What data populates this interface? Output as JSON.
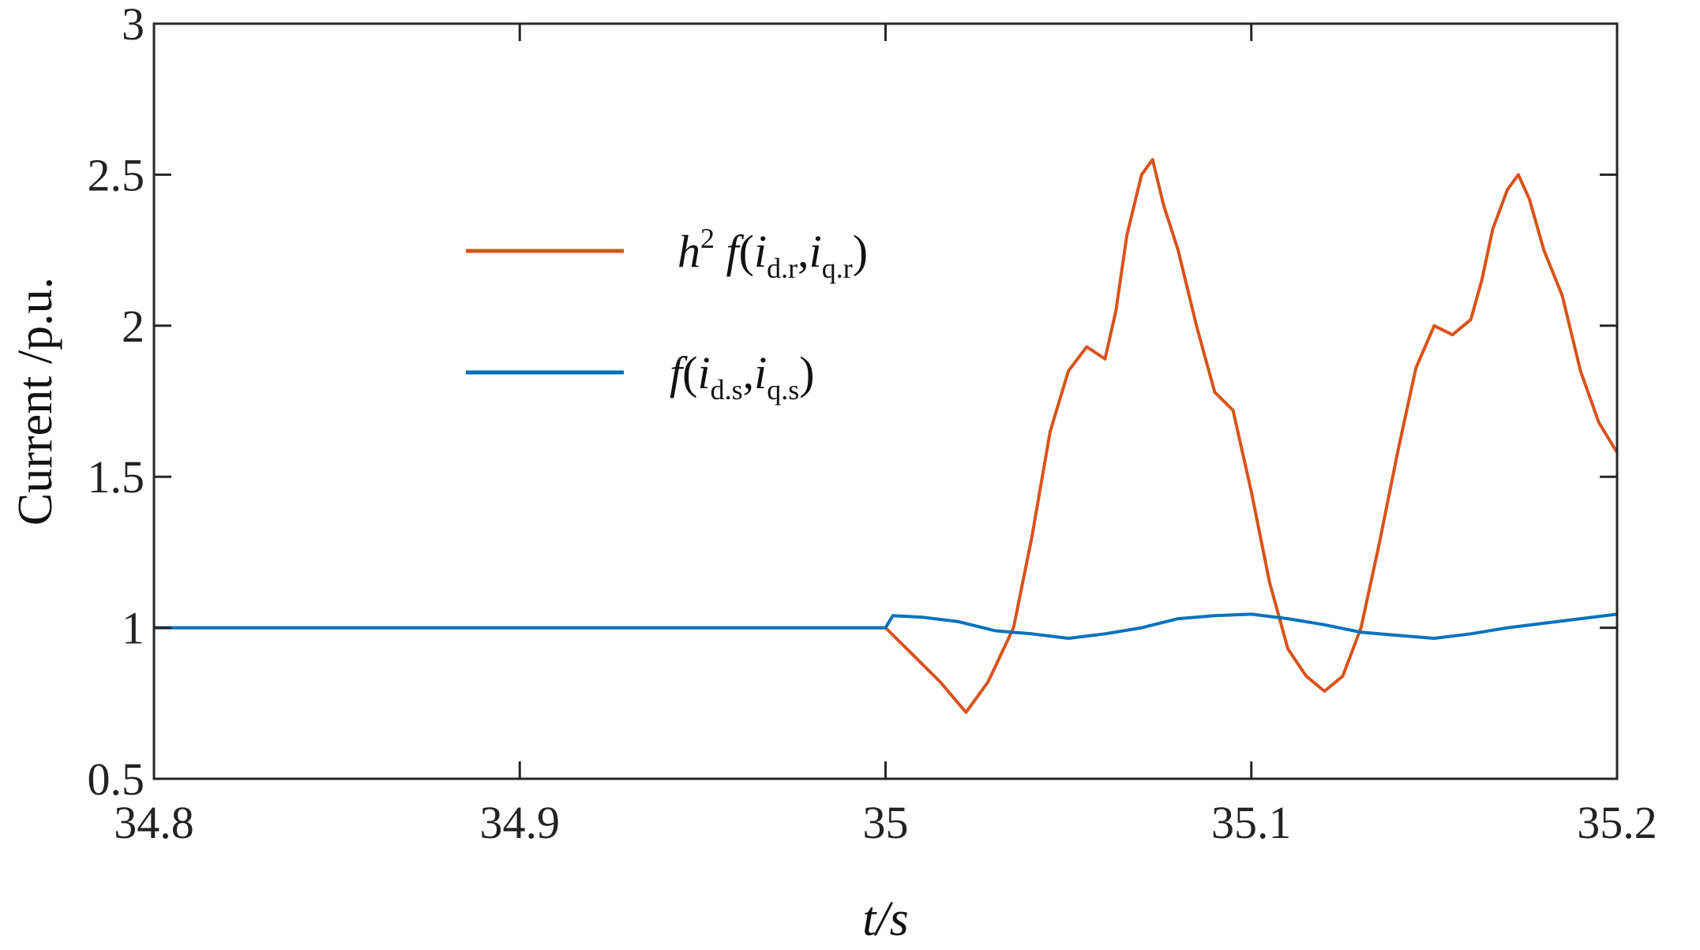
{
  "chart_data": {
    "type": "line",
    "xlabel": "t/s",
    "ylabel": "Current /p.u.",
    "xlim": [
      34.8,
      35.2
    ],
    "ylim": [
      0.5,
      3
    ],
    "xticks": [
      34.8,
      34.9,
      35.0,
      35.1,
      35.2
    ],
    "xtick_labels": [
      "34.8",
      "34.9",
      "35",
      "35.1",
      "35.2"
    ],
    "yticks": [
      0.5,
      1.0,
      1.5,
      2.0,
      2.5,
      3.0
    ],
    "ytick_labels": [
      "0.5",
      "1",
      "1.5",
      "2",
      "2.5",
      "3"
    ],
    "grid": false,
    "legend_position": "upper-left-center",
    "series": [
      {
        "name": "h²f(i_d.r, i_q.r)",
        "legend": {
          "pre": "h",
          "sup": "2",
          "fn": "f",
          "a": "i",
          "a_sub": "d.r",
          "b": "i",
          "b_sub": "q.r"
        },
        "color": "#D95319",
        "x": [
          34.8,
          34.9,
          35.0,
          35.005,
          35.01,
          35.015,
          35.022,
          35.028,
          35.035,
          35.04,
          35.045,
          35.05,
          35.055,
          35.06,
          35.063,
          35.066,
          35.07,
          35.073,
          35.076,
          35.08,
          35.085,
          35.09,
          35.095,
          35.1,
          35.105,
          35.11,
          35.115,
          35.12,
          35.125,
          35.13,
          35.135,
          35.14,
          35.145,
          35.15,
          35.155,
          35.16,
          35.163,
          35.166,
          35.17,
          35.173,
          35.176,
          35.18,
          35.185,
          35.19,
          35.195,
          35.2
        ],
        "y": [
          1.0,
          1.0,
          1.0,
          0.94,
          0.88,
          0.82,
          0.72,
          0.82,
          1.0,
          1.3,
          1.65,
          1.85,
          1.93,
          1.89,
          2.05,
          2.3,
          2.5,
          2.55,
          2.4,
          2.25,
          2.0,
          1.78,
          1.72,
          1.45,
          1.15,
          0.93,
          0.84,
          0.79,
          0.84,
          1.0,
          1.28,
          1.58,
          1.86,
          2.0,
          1.97,
          2.02,
          2.15,
          2.32,
          2.45,
          2.5,
          2.42,
          2.25,
          2.1,
          1.85,
          1.68,
          1.58
        ]
      },
      {
        "name": "f(i_d.s, i_q.s)",
        "legend": {
          "pre": "",
          "sup": "",
          "fn": "f",
          "a": "i",
          "a_sub": "d.s",
          "b": "i",
          "b_sub": "q.s"
        },
        "color": "#0072BD",
        "x": [
          34.8,
          34.9,
          35.0,
          35.002,
          35.01,
          35.02,
          35.03,
          35.04,
          35.05,
          35.06,
          35.07,
          35.08,
          35.09,
          35.1,
          35.11,
          35.12,
          35.13,
          35.14,
          35.15,
          35.16,
          35.17,
          35.18,
          35.19,
          35.2
        ],
        "y": [
          1.0,
          1.0,
          1.0,
          1.04,
          1.035,
          1.02,
          0.99,
          0.98,
          0.965,
          0.98,
          1.0,
          1.03,
          1.04,
          1.045,
          1.03,
          1.01,
          0.985,
          0.975,
          0.965,
          0.98,
          1.0,
          1.015,
          1.03,
          1.045
        ]
      }
    ]
  }
}
